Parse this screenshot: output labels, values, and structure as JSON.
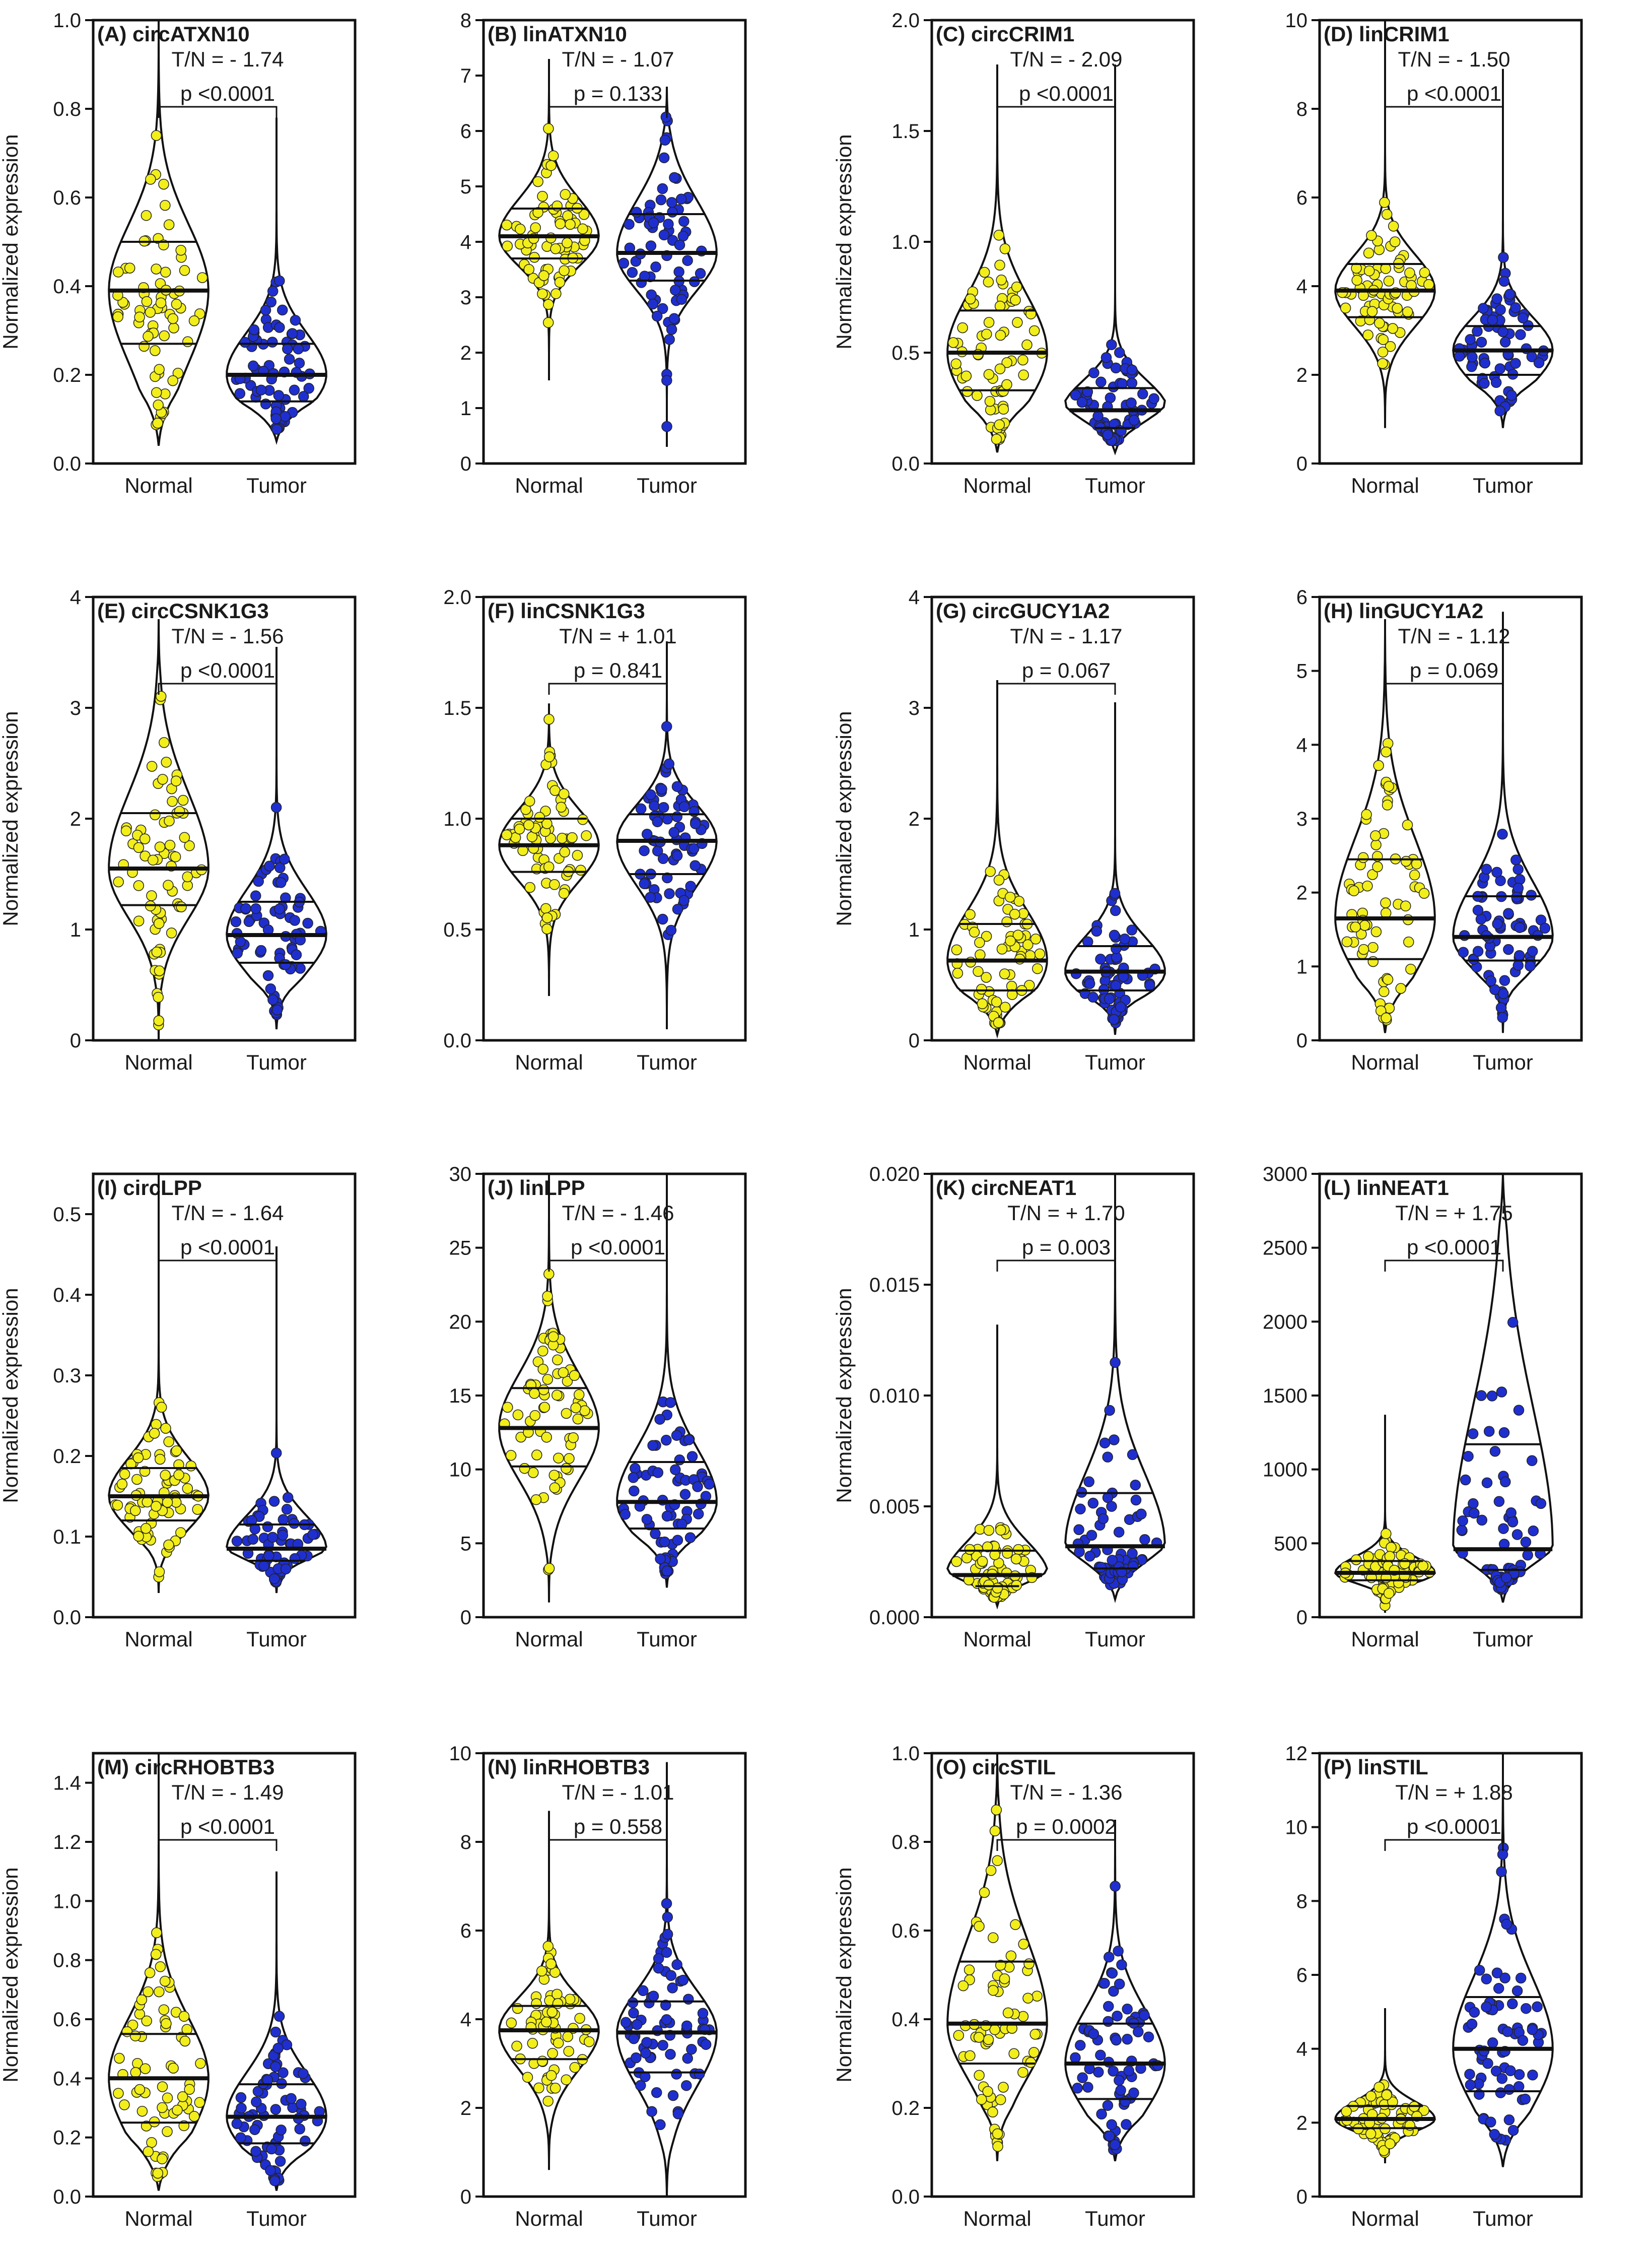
{
  "figure": {
    "group_labels": [
      "Normal",
      "Tumor"
    ],
    "y_axis_label": "Normalized expression",
    "colors": {
      "normal": "#f2ee1a",
      "tumor": "#1f2fcf",
      "outline": "#111111"
    }
  },
  "chart_data": [
    {
      "type": "violin",
      "panel": "(A) circATXN10",
      "title": "(A) circATXN10",
      "tn": "T/N = - 1.74",
      "p": "p <0.0001",
      "ylabel": "Normalized expression",
      "ylim": [
        0,
        1.0
      ],
      "yticks": [
        "0.0",
        "0.2",
        "0.4",
        "0.6",
        "0.8",
        "1.0"
      ],
      "categories": [
        "Normal",
        "Tumor"
      ],
      "series": [
        {
          "name": "Normal",
          "median": 0.39,
          "q1": 0.27,
          "q3": 0.5,
          "min": 0.04,
          "max": 1.0
        },
        {
          "name": "Tumor",
          "median": 0.2,
          "q1": 0.14,
          "q3": 0.27,
          "min": 0.05,
          "max": 0.78
        }
      ]
    },
    {
      "type": "violin",
      "panel": "(B) linATXN10",
      "title": "(B) linATXN10",
      "tn": "T/N = - 1.07",
      "p": "p = 0.133",
      "ylabel": "",
      "ylim": [
        0,
        8
      ],
      "yticks": [
        "0",
        "1",
        "2",
        "3",
        "4",
        "5",
        "6",
        "7",
        "8"
      ],
      "categories": [
        "Normal",
        "Tumor"
      ],
      "series": [
        {
          "name": "Normal",
          "median": 4.1,
          "q1": 3.7,
          "q3": 4.6,
          "min": 1.5,
          "max": 7.3
        },
        {
          "name": "Tumor",
          "median": 3.8,
          "q1": 3.3,
          "q3": 4.5,
          "min": 0.3,
          "max": 6.8
        }
      ]
    },
    {
      "type": "violin",
      "panel": "(C) circCRIM1",
      "title": "(C) circCRIM1",
      "tn": "T/N = - 2.09",
      "p": "p <0.0001",
      "ylabel": "Normalized expression",
      "ylim": [
        0,
        2.0
      ],
      "yticks": [
        "0.0",
        "0.5",
        "1.0",
        "1.5",
        "2.0"
      ],
      "categories": [
        "Normal",
        "Tumor"
      ],
      "series": [
        {
          "name": "Normal",
          "median": 0.5,
          "q1": 0.33,
          "q3": 0.69,
          "min": 0.05,
          "max": 1.8
        },
        {
          "name": "Tumor",
          "median": 0.24,
          "q1": 0.16,
          "q3": 0.34,
          "min": 0.05,
          "max": 1.8
        }
      ]
    },
    {
      "type": "violin",
      "panel": "(D) linCRIM1",
      "title": "(D) linCRIM1",
      "tn": "T/N = - 1.50",
      "p": "p <0.0001",
      "ylabel": "",
      "ylim": [
        0,
        10
      ],
      "yticks": [
        "0",
        "2",
        "4",
        "6",
        "8",
        "10"
      ],
      "categories": [
        "Normal",
        "Tumor"
      ],
      "series": [
        {
          "name": "Normal",
          "median": 3.9,
          "q1": 3.3,
          "q3": 4.5,
          "min": 0.8,
          "max": 10
        },
        {
          "name": "Tumor",
          "median": 2.55,
          "q1": 2.0,
          "q3": 3.1,
          "min": 0.8,
          "max": 8.9
        }
      ]
    },
    {
      "type": "violin",
      "panel": "(E) circCSNK1G3",
      "title": "(E) circCSNK1G3",
      "tn": "T/N = - 1.56",
      "p": "p <0.0001",
      "ylabel": "Normalized expression",
      "ylim": [
        0,
        4
      ],
      "yticks": [
        "0",
        "1",
        "2",
        "3",
        "4"
      ],
      "categories": [
        "Normal",
        "Tumor"
      ],
      "series": [
        {
          "name": "Normal",
          "median": 1.55,
          "q1": 1.22,
          "q3": 2.05,
          "min": 0.0,
          "max": 3.8
        },
        {
          "name": "Tumor",
          "median": 0.95,
          "q1": 0.7,
          "q3": 1.25,
          "min": 0.1,
          "max": 3.55
        }
      ]
    },
    {
      "type": "violin",
      "panel": "(F) linCSNK1G3",
      "title": "(F) linCSNK1G3",
      "tn": "T/N = + 1.01",
      "p": "p = 0.841",
      "ylabel": "",
      "ylim": [
        0,
        2.0
      ],
      "yticks": [
        "0.0",
        "0.5",
        "1.0",
        "1.5",
        "2.0"
      ],
      "categories": [
        "Normal",
        "Tumor"
      ],
      "series": [
        {
          "name": "Normal",
          "median": 0.88,
          "q1": 0.76,
          "q3": 1.0,
          "min": 0.2,
          "max": 1.52
        },
        {
          "name": "Tumor",
          "median": 0.9,
          "q1": 0.75,
          "q3": 1.02,
          "min": 0.05,
          "max": 1.8
        }
      ]
    },
    {
      "type": "violin",
      "panel": "(G) circGUCY1A2",
      "title": "(G) circGUCY1A2",
      "tn": "T/N = - 1.17",
      "p": "p = 0.067",
      "ylabel": "Normalized expression",
      "ylim": [
        0,
        4
      ],
      "yticks": [
        "0",
        "1",
        "2",
        "3",
        "4"
      ],
      "categories": [
        "Normal",
        "Tumor"
      ],
      "series": [
        {
          "name": "Normal",
          "median": 0.72,
          "q1": 0.45,
          "q3": 1.05,
          "min": 0.05,
          "max": 3.25
        },
        {
          "name": "Tumor",
          "median": 0.62,
          "q1": 0.45,
          "q3": 0.85,
          "min": 0.05,
          "max": 3.05
        }
      ]
    },
    {
      "type": "violin",
      "panel": "(H) linGUCY1A2",
      "title": "(H) linGUCY1A2",
      "tn": "T/N = - 1.12",
      "p": "p = 0.069",
      "ylabel": "",
      "ylim": [
        0,
        6
      ],
      "yticks": [
        "0",
        "1",
        "2",
        "3",
        "4",
        "5",
        "6"
      ],
      "categories": [
        "Normal",
        "Tumor"
      ],
      "series": [
        {
          "name": "Normal",
          "median": 1.65,
          "q1": 1.1,
          "q3": 2.45,
          "min": 0.1,
          "max": 5.7
        },
        {
          "name": "Tumor",
          "median": 1.4,
          "q1": 1.08,
          "q3": 1.95,
          "min": 0.1,
          "max": 5.8
        }
      ]
    },
    {
      "type": "violin",
      "panel": "(I) circLPP",
      "title": "(I) circLPP",
      "tn": "T/N = - 1.64",
      "p": "p <0.0001",
      "ylabel": "Normalized expression",
      "ylim": [
        0,
        0.55
      ],
      "yticks": [
        "0.0",
        "0.1",
        "0.2",
        "0.3",
        "0.4",
        "0.5"
      ],
      "categories": [
        "Normal",
        "Tumor"
      ],
      "series": [
        {
          "name": "Normal",
          "median": 0.15,
          "q1": 0.12,
          "q3": 0.185,
          "min": 0.03,
          "max": 0.55
        },
        {
          "name": "Tumor",
          "median": 0.085,
          "q1": 0.07,
          "q3": 0.115,
          "min": 0.03,
          "max": 0.46
        }
      ]
    },
    {
      "type": "violin",
      "panel": "(J) linLPP",
      "title": "(J) linLPP",
      "tn": "T/N = - 1.46",
      "p": "p <0.0001",
      "ylabel": "",
      "ylim": [
        0,
        30
      ],
      "yticks": [
        "0",
        "5",
        "10",
        "15",
        "20",
        "25",
        "30"
      ],
      "categories": [
        "Normal",
        "Tumor"
      ],
      "series": [
        {
          "name": "Normal",
          "median": 12.8,
          "q1": 10.2,
          "q3": 15.5,
          "min": 1.0,
          "max": 30
        },
        {
          "name": "Tumor",
          "median": 7.8,
          "q1": 6.0,
          "q3": 10.5,
          "min": 2.0,
          "max": 30
        }
      ]
    },
    {
      "type": "violin",
      "panel": "(K) circNEAT1",
      "title": "(K) circNEAT1",
      "tn": "T/N = + 1.70",
      "p": "p = 0.003",
      "ylabel": "Normalized expression",
      "ylim": [
        0,
        0.02
      ],
      "yticks": [
        "0.000",
        "0.005",
        "0.010",
        "0.015",
        "0.020"
      ],
      "categories": [
        "Normal",
        "Tumor"
      ],
      "series": [
        {
          "name": "Normal",
          "median": 0.0019,
          "q1": 0.0014,
          "q3": 0.003,
          "min": 0.0005,
          "max": 0.0132
        },
        {
          "name": "Tumor",
          "median": 0.0032,
          "q1": 0.0022,
          "q3": 0.0056,
          "min": 0.0008,
          "max": 0.02
        }
      ]
    },
    {
      "type": "violin",
      "panel": "(L) linNEAT1",
      "title": "(L) linNEAT1",
      "tn": "T/N = + 1.75",
      "p": "p <0.0001",
      "ylabel": "",
      "ylim": [
        0,
        3000
      ],
      "yticks": [
        "0",
        "500",
        "1000",
        "1500",
        "2000",
        "2500",
        "3000"
      ],
      "categories": [
        "Normal",
        "Tumor"
      ],
      "series": [
        {
          "name": "Normal",
          "median": 300,
          "q1": 250,
          "q3": 380,
          "min": 30,
          "max": 1370
        },
        {
          "name": "Tumor",
          "median": 460,
          "q1": 320,
          "q3": 1170,
          "min": 100,
          "max": 3000
        }
      ]
    },
    {
      "type": "violin",
      "panel": "(M) circRHOBTB3",
      "title": "(M) circRHOBTB3",
      "tn": "T/N = - 1.49",
      "p": "p <0.0001",
      "ylabel": "Normalized expression",
      "ylim": [
        0,
        1.5
      ],
      "yticks": [
        "0.0",
        "0.2",
        "0.4",
        "0.6",
        "0.8",
        "1.0",
        "1.2",
        "1.4"
      ],
      "categories": [
        "Normal",
        "Tumor"
      ],
      "series": [
        {
          "name": "Normal",
          "median": 0.4,
          "q1": 0.25,
          "q3": 0.55,
          "min": 0.02,
          "max": 1.5
        },
        {
          "name": "Tumor",
          "median": 0.27,
          "q1": 0.18,
          "q3": 0.38,
          "min": 0.02,
          "max": 1.1
        }
      ]
    },
    {
      "type": "violin",
      "panel": "(N) linRHOBTB3",
      "title": "(N) linRHOBTB3",
      "tn": "T/N = - 1.01",
      "p": "p = 0.558",
      "ylabel": "",
      "ylim": [
        0,
        10
      ],
      "yticks": [
        "0",
        "2",
        "4",
        "6",
        "8",
        "10"
      ],
      "categories": [
        "Normal",
        "Tumor"
      ],
      "series": [
        {
          "name": "Normal",
          "median": 3.75,
          "q1": 3.1,
          "q3": 4.3,
          "min": 0.6,
          "max": 8.7
        },
        {
          "name": "Tumor",
          "median": 3.7,
          "q1": 2.8,
          "q3": 4.4,
          "min": 0.0,
          "max": 9.8
        }
      ]
    },
    {
      "type": "violin",
      "panel": "(O) circSTIL",
      "title": "(O) circSTIL",
      "tn": "T/N = - 1.36",
      "p": "p = 0.0002",
      "ylabel": "Normalized expression",
      "ylim": [
        0,
        1.0
      ],
      "yticks": [
        "0.0",
        "0.2",
        "0.4",
        "0.6",
        "0.8",
        "1.0"
      ],
      "categories": [
        "Normal",
        "Tumor"
      ],
      "series": [
        {
          "name": "Normal",
          "median": 0.39,
          "q1": 0.3,
          "q3": 0.53,
          "min": 0.08,
          "max": 1.0
        },
        {
          "name": "Tumor",
          "median": 0.3,
          "q1": 0.22,
          "q3": 0.39,
          "min": 0.08,
          "max": 0.85
        }
      ]
    },
    {
      "type": "violin",
      "panel": "(P) linSTIL",
      "title": "(P) linSTIL",
      "tn": "T/N = + 1.88",
      "p": "p <0.0001",
      "ylabel": "",
      "ylim": [
        0,
        12
      ],
      "yticks": [
        "0",
        "2",
        "4",
        "6",
        "8",
        "10",
        "12"
      ],
      "categories": [
        "Normal",
        "Tumor"
      ],
      "series": [
        {
          "name": "Normal",
          "median": 2.1,
          "q1": 1.85,
          "q3": 2.45,
          "min": 0.9,
          "max": 5.1
        },
        {
          "name": "Tumor",
          "median": 4.0,
          "q1": 2.85,
          "q3": 5.4,
          "min": 0.8,
          "max": 12
        }
      ]
    }
  ]
}
